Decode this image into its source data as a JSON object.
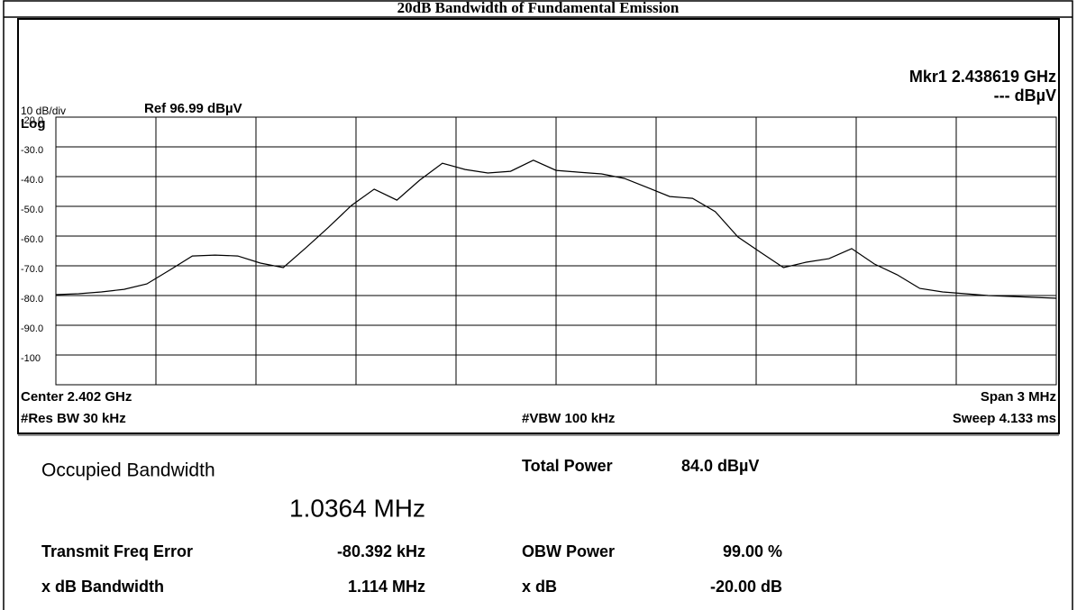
{
  "title": "20dB Bandwidth of Fundamental Emission",
  "chart_data": {
    "type": "line",
    "scale_label": "10 dB/div",
    "ref_label": "Ref 96.99 dBµV",
    "log_label": "Log",
    "marker_label": "Mkr1 2.438619 GHz",
    "marker_value": "--- dBµV",
    "marker_number": "1",
    "color": "#000000",
    "grid": true,
    "ylim": [
      -110,
      -20
    ],
    "yticks": [
      {
        "value": -20,
        "label": "-20.0"
      },
      {
        "value": -30,
        "label": "-30.0"
      },
      {
        "value": -40,
        "label": "-40.0"
      },
      {
        "value": -50,
        "label": "-50.0"
      },
      {
        "value": -60,
        "label": "-60.0"
      },
      {
        "value": -70,
        "label": "-70.0"
      },
      {
        "value": -80,
        "label": "-80.0"
      },
      {
        "value": -90,
        "label": "-90.0"
      },
      -100
    ],
    "values": [
      -79.7,
      -79.4,
      -78.8,
      -77.9,
      -76.1,
      -71.5,
      -66.7,
      -66.4,
      -66.7,
      -69.1,
      -70.6,
      -63.9,
      -57.0,
      -49.7,
      -44.2,
      -47.9,
      -41.2,
      -35.5,
      -37.6,
      -38.8,
      -38.2,
      -34.5,
      -37.9,
      -38.5,
      -39.1,
      -40.6,
      -43.6,
      -46.7,
      -47.3,
      -51.8,
      -60.3,
      -65.5,
      -70.6,
      -68.8,
      -67.6,
      -64.2,
      -69.4,
      -73.0,
      -77.6,
      -78.8,
      -79.4,
      -80.0,
      -80.3,
      -80.6,
      -80.9
    ],
    "center": "Center 2.402 GHz",
    "span": "Span 3 MHz",
    "rbw": "#Res BW 30 kHz",
    "vbw": "#VBW 100 kHz",
    "sweep": "Sweep 4.133 ms"
  },
  "results": {
    "obw_label": "Occupied Bandwidth",
    "obw_value": "1.0364 MHz",
    "total_power_label": "Total Power",
    "total_power_value": "84.0 dBµV",
    "freq_error_label": "Transmit Freq Error",
    "freq_error_value": "-80.392 kHz",
    "obw_power_label": "OBW Power",
    "obw_power_value": "99.00 %",
    "xdb_bw_label": "x dB Bandwidth",
    "xdb_bw_value": "1.114 MHz",
    "xdb_label": "x dB",
    "xdb_value": "-20.00 dB"
  }
}
